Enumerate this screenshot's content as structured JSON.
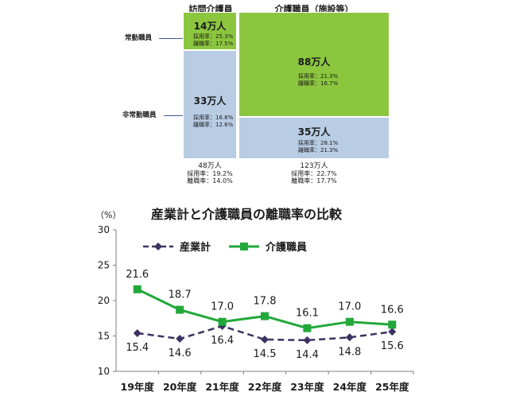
{
  "breakdown": {
    "col_home": "訪問介護員",
    "col_facility": "介護職員（施設等）",
    "row_full": "常勤職員",
    "row_part": "非常勤職員",
    "home_full": {
      "count": "14万人",
      "hire": "採用率：25.3%",
      "sep": "離職率：17.5%"
    },
    "home_part": {
      "count": "33万人",
      "hire": "採用率：16.8%",
      "sep": "離職率：12.6%"
    },
    "fac_full": {
      "count": "88万人",
      "hire": "採用率：21.3%",
      "sep": "離職率：16.7%"
    },
    "fac_part": {
      "count": "35万人",
      "hire": "採用率：28.1%",
      "sep": "離職率：21.3%"
    },
    "home_total": {
      "count": "48万人",
      "hire": "採用率：19.2%",
      "sep": "離職率：14.0%"
    },
    "fac_total": {
      "count": "123万人",
      "hire": "採用率：22.7%",
      "sep": "離職率：17.7%"
    },
    "colors": {
      "green": "#8cc63f",
      "blue": "#b8cce4"
    }
  },
  "chart_data": {
    "type": "line",
    "title": "産業計と介護職員の離職率の比較",
    "ylabel": "（%）",
    "categories": [
      "19年度",
      "20年度",
      "21年度",
      "22年度",
      "23年度",
      "24年度",
      "25年度"
    ],
    "ylim": [
      10,
      30
    ],
    "yticks": [
      "10",
      "15",
      "20",
      "25",
      "30"
    ],
    "grid": false,
    "legend": "top-left",
    "series": [
      {
        "name": "産業計",
        "values": [
          15.4,
          14.6,
          16.4,
          14.5,
          14.4,
          14.8,
          15.6
        ],
        "labels": [
          "15.4",
          "14.6",
          "16.4",
          "14.5",
          "14.4",
          "14.8",
          "15.6"
        ],
        "color": "#3d3361",
        "style": "dashed",
        "marker": "diamond"
      },
      {
        "name": "介護職員",
        "values": [
          21.6,
          18.7,
          17.0,
          17.8,
          16.1,
          17.0,
          16.6
        ],
        "labels": [
          "21.6",
          "18.7",
          "17.0",
          "17.8",
          "16.1",
          "17.0",
          "16.6"
        ],
        "color": "#22a83a",
        "style": "solid",
        "marker": "square"
      }
    ]
  }
}
